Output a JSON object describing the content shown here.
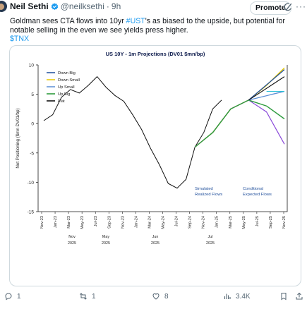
{
  "tweet": {
    "author_name": "Neil Sethi",
    "handle": "@neilksethi",
    "separator": "·",
    "time": "9h",
    "promote_label": "Promote",
    "more_label": "···",
    "text_before": "Goldman sees CTA flows into 10yr ",
    "hashtag": "#UST",
    "text_after": "'s as biased to the upside, but potential for notable selling in the even we see yields press higher.",
    "cashtag": "$TNX"
  },
  "chart_data": {
    "type": "line",
    "title": "US 10Y - 1m Projections (DV01 $mn/bp)",
    "ylabel": "Net Positioning ($mn DV01/bp)",
    "xlabel": "",
    "ylim": [
      -15,
      10
    ],
    "yticks": [
      "10",
      "5",
      "0",
      "-5",
      "-10",
      "-15"
    ],
    "xticks": [
      "Nov-23",
      "Jan-23",
      "Mar-23",
      "May-23",
      "Jul-23",
      "Sep-23",
      "Nov-23",
      "Jan-24",
      "Mar-24",
      "May-24",
      "Jul-24",
      "Sep-24",
      "Nov-24",
      "Jan-25",
      "Mar-25",
      "May-25",
      "Jul-25",
      "Sep-25",
      "Nov-25"
    ],
    "xdates": [
      {
        "line1": "Nov",
        "line2": "2025"
      },
      {
        "line1": "May",
        "line2": "2025"
      },
      {
        "line1": "Jun",
        "line2": "2025"
      },
      {
        "line1": "Jul",
        "line2": "2025"
      }
    ],
    "legend_position": "top-left",
    "series": [
      {
        "name": "Down Big",
        "color": "#1f4e9b"
      },
      {
        "name": "Down Small",
        "color": "#e8c800"
      },
      {
        "name": "Up Small",
        "color": "#5b8fd6"
      },
      {
        "name": "Up Big",
        "color": "#2e9b3e"
      },
      {
        "name": "Flat",
        "color": "#111111"
      }
    ],
    "annotations": [
      {
        "line1": "Simulated",
        "line2": "Realized Flows",
        "color": "#1f4e9b"
      },
      {
        "line1": "Conditional",
        "line2": "Expected Flows",
        "color": "#1f4e9b"
      }
    ],
    "historical": [
      0.5,
      1.5,
      4.5,
      5.8,
      5.2,
      6.5,
      8.0,
      6.2,
      4.8,
      3.8,
      1.5,
      -1.0,
      -4.2,
      -7.0,
      -10.2,
      -11.0,
      -9.5,
      -4.0,
      -1.5,
      2.5,
      4.0
    ],
    "projections": {
      "start": 4.0,
      "Down Big": 9.2,
      "Down Small": 8.6,
      "Up Small": 5.5,
      "Up Big": 0.8,
      "Flat": 8.0
    },
    "bands": {
      "yellow_top": [
        -4.0,
        -1.5,
        2.5,
        4.0,
        6.5,
        9.5
      ],
      "purple_bottom": [
        -4.0,
        -1.5,
        2.5,
        4.0,
        2.0,
        -3.5
      ],
      "green_bottom": [
        -4.0,
        -1.5,
        2.5,
        4.0,
        3.0,
        0.8
      ]
    }
  },
  "actions": {
    "replies": "1",
    "reposts": "1",
    "likes": "8",
    "views": "3.4K"
  },
  "colors": {
    "accent": "#1d9bf0",
    "verified": "#1d9bf0",
    "muted": "#536471"
  }
}
